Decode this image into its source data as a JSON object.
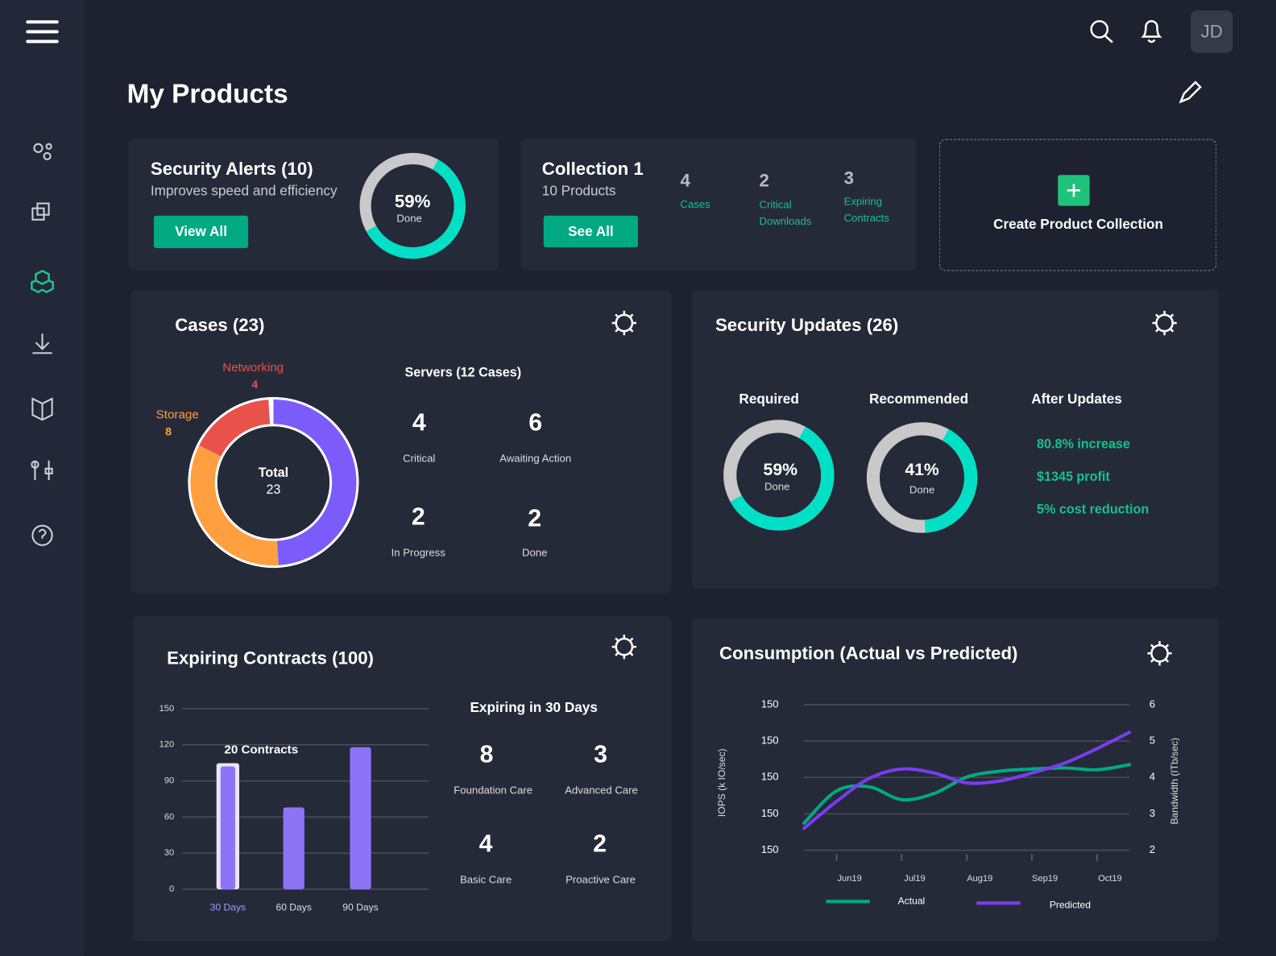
{
  "header": {
    "avatar": "JD"
  },
  "page_title": "My Products",
  "security_alerts": {
    "title": "Security Alerts (10)",
    "subtitle": "Improves speed and efficiency",
    "button": "View All",
    "progress": {
      "value": 59,
      "label": "59%",
      "caption": "Done"
    }
  },
  "collection": {
    "title": "Collection 1",
    "subtitle": "10 Products",
    "button": "See All",
    "stats": [
      {
        "value": 4,
        "label": "Cases"
      },
      {
        "value": 2,
        "label": "Critical Downloads"
      },
      {
        "value": 3,
        "label": "Expiring Contracts"
      }
    ]
  },
  "create_collection": {
    "label": "Create Product Collection"
  },
  "cases": {
    "title": "Cases (23)",
    "donut": {
      "segments": [
        {
          "value": 12,
          "color": "#7b5cfa"
        },
        {
          "name": "Storage",
          "value": 8,
          "color": "#ff9f40"
        },
        {
          "name": "Networking",
          "value": 4,
          "color": "#e9524a"
        }
      ],
      "center_label": "Total",
      "center_value": 23
    },
    "servers": {
      "title": "Servers (12 Cases)",
      "stats": [
        {
          "value": 4,
          "label": "Critical"
        },
        {
          "value": 6,
          "label": "Awaiting Action"
        },
        {
          "value": 2,
          "label": "In Progress"
        },
        {
          "value": 2,
          "label": "Done"
        }
      ]
    }
  },
  "security_updates": {
    "title": "Security Updates (26)",
    "gauges": [
      {
        "title": "Required",
        "value": 59,
        "label": "59%",
        "caption": "Done"
      },
      {
        "title": "Recommended",
        "value": 41,
        "label": "41%",
        "caption": "Done"
      }
    ],
    "after_updates": {
      "title": "After Updates",
      "items": [
        "80.8% increase",
        "$1345 profit",
        "5% cost reduction"
      ]
    }
  },
  "expiring_contracts": {
    "title": "Expiring Contracts (100)",
    "chart_data": {
      "type": "bar",
      "categories": [
        "30 Days",
        "60 Days",
        "90 Days"
      ],
      "values": [
        102,
        68,
        118
      ],
      "color": "#8c74f6",
      "ylim": [
        0,
        150
      ],
      "yticks": [
        0,
        30,
        60,
        90,
        120,
        150
      ],
      "grid": true,
      "annotation": "20 Contracts"
    },
    "summary": {
      "title": "Expiring in 30 Days",
      "stats": [
        {
          "value": 8,
          "label": "Foundation Care"
        },
        {
          "value": 3,
          "label": "Advanced Care"
        },
        {
          "value": 4,
          "label": "Basic Care"
        },
        {
          "value": 2,
          "label": "Proactive Care"
        }
      ]
    }
  },
  "consumption": {
    "title": "Consumption (Actual vs Predicted)",
    "chart_data": {
      "type": "line",
      "categories": [
        null,
        "Jun19",
        null,
        "Jul19",
        null,
        "Aug19",
        null,
        "Sep19",
        null,
        "Oct19",
        null
      ],
      "series": [
        {
          "name": "Actual",
          "color": "#01a982",
          "axis": "y2",
          "values": [
            2.74,
            3.63,
            3.74,
            3.39,
            3.56,
            4.01,
            4.17,
            4.23,
            4.26,
            4.21,
            4.35
          ]
        },
        {
          "name": "Predicted",
          "color": "#7a3cf0",
          "axis": "y2",
          "values": [
            2.6,
            3.34,
            3.97,
            4.23,
            4.12,
            3.85,
            3.9,
            4.12,
            4.39,
            4.79,
            5.24
          ]
        }
      ],
      "ylabel": "IOPS (k IO/sec)",
      "y2label": "Bandwidth (ITb/sec)",
      "ylim": [
        2,
        6
      ],
      "yticks": [
        {
          "value": 2,
          "label": "150"
        },
        {
          "value": 3,
          "label": "150"
        },
        {
          "value": 4,
          "label": "150"
        },
        {
          "value": 5,
          "label": "150"
        },
        {
          "value": 6,
          "label": "150"
        }
      ],
      "y2lim": [
        2,
        6
      ],
      "y2ticks": [
        2,
        3,
        4,
        5,
        6
      ],
      "grid": true
    }
  }
}
